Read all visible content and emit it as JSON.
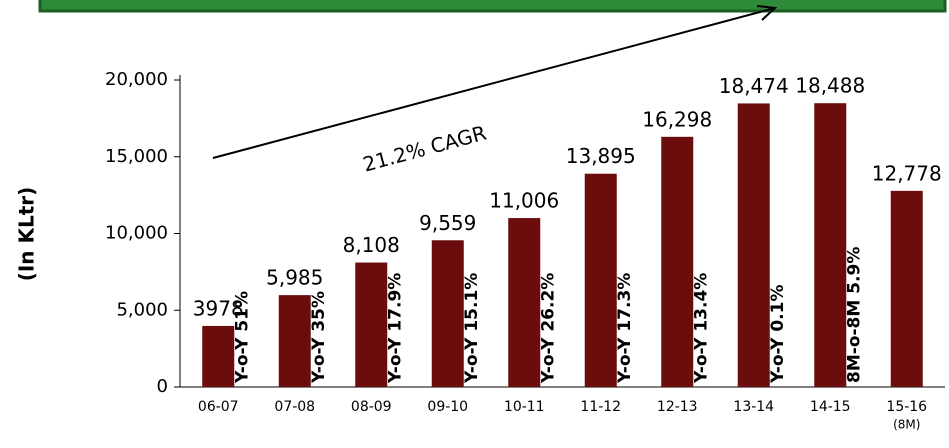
{
  "chart_data": {
    "type": "bar",
    "y_axis_label": "(In KLtr)",
    "categories": [
      "06-07",
      "07-08",
      "08-09",
      "09-10",
      "10-11",
      "11-12",
      "12-13",
      "13-14",
      "14-15",
      "15-16"
    ],
    "category_note": "(8M)",
    "values": [
      3978,
      5985,
      8108,
      9559,
      11006,
      13895,
      16298,
      18474,
      18488,
      12778
    ],
    "value_labels": [
      "3978",
      "5,985",
      "8,108",
      "9,559",
      "11,006",
      "13,895",
      "16,298",
      "18,474",
      "18,488",
      "12,778"
    ],
    "growth_labels": [
      "Y-o-Y 51%",
      "Y-o-Y 35%",
      "Y-o-Y 17.9%",
      "Y-o-Y 15.1%",
      "Y-o-Y 26.2%",
      "Y-o-Y 17.3%",
      "Y-o-Y 13.4%",
      "Y-o-Y 0.1%",
      "8M-o-8M 5.9%"
    ],
    "trend_annotation": "21.2% CAGR",
    "color": "#6b0d0d",
    "ylim": [
      0,
      20000
    ],
    "yticks": [
      0,
      {
        "value": 5000,
        "label": "5,000"
      },
      {
        "value": 10000,
        "label": "10,000"
      },
      {
        "value": 15000,
        "label": "15,000"
      },
      {
        "value": 20000,
        "label": "20,000"
      }
    ]
  }
}
